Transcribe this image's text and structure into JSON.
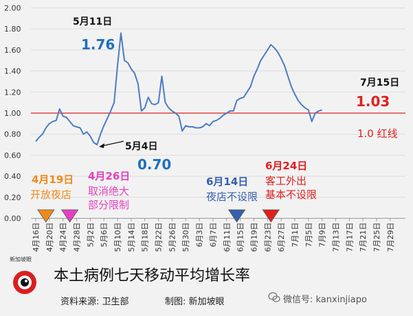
{
  "chart_data": {
    "type": "line",
    "title": "本土病例七天移动平均增长率",
    "ylim": [
      0,
      2.0
    ],
    "yticks": [
      "0.00",
      "0.20",
      "0.40",
      "0.60",
      "0.80",
      "1.00",
      "1.20",
      "1.40",
      "1.60",
      "1.80",
      "2.00"
    ],
    "xticks": [
      "4月16日",
      "4月20日",
      "4月24日",
      "4月28日",
      "5月2日",
      "5月6日",
      "5月10日",
      "5月14日",
      "5月18日",
      "5月22日",
      "5月26日",
      "5月30日",
      "6月3日",
      "6月7日",
      "6月11日",
      "6月15日",
      "6月19日",
      "6月23日",
      "6月27日",
      "7月1日",
      "7月5日",
      "7月9日",
      "7月13日",
      "7月17日",
      "7月21日",
      "7月25日",
      "7月29日"
    ],
    "x_start": "4月16日",
    "line_color": "#4a7cc4",
    "series": [
      {
        "values": [
          0.73,
          0.77,
          0.8,
          0.86,
          0.9,
          0.92,
          0.93,
          1.04,
          0.97,
          0.96,
          0.92,
          0.88,
          0.87,
          0.86,
          0.8,
          0.82,
          0.78,
          0.72,
          0.7,
          0.8,
          0.88,
          0.95,
          1.02,
          1.1,
          1.45,
          1.76,
          1.5,
          1.48,
          1.42,
          1.38,
          1.28,
          1.02,
          1.05,
          1.15,
          1.09,
          1.08,
          1.1,
          1.35,
          1.1,
          1.05,
          1.02,
          1.0,
          0.97,
          0.83,
          0.88,
          0.87,
          0.87,
          0.86,
          0.86,
          0.87,
          0.9,
          0.88,
          0.92,
          0.93,
          0.95,
          0.98,
          1.0,
          1.02,
          1.02,
          1.12,
          1.14,
          1.15,
          1.2,
          1.25,
          1.35,
          1.42,
          1.5,
          1.55,
          1.6,
          1.65,
          1.62,
          1.58,
          1.52,
          1.45,
          1.35,
          1.25,
          1.18,
          1.12,
          1.08,
          1.05,
          1.03,
          0.92,
          1.0,
          1.02,
          1.03
        ]
      }
    ],
    "red_line": {
      "value": 1.0,
      "label": "1.0 红线",
      "color": "#e02020"
    },
    "annotations": [
      {
        "date": "5月11日",
        "value": "1.76",
        "color": "#1e6fc0"
      },
      {
        "date": "5月4日",
        "value": "0.70",
        "color": "#1e6fc0"
      },
      {
        "date": "7月15日",
        "value": "1.03",
        "color": "#e02020"
      }
    ],
    "events": [
      {
        "date": "4月19日",
        "lines": [
          "开放夜店"
        ],
        "color": "#f08a1c",
        "day": 3
      },
      {
        "date": "4月26日",
        "lines": [
          "取消绝大",
          "部分限制"
        ],
        "color": "#e540c0",
        "day": 10
      },
      {
        "date": "6月14日",
        "lines": [
          "夜店不设限"
        ],
        "color": "#3560b0",
        "day": 59
      },
      {
        "date": "6月24日",
        "lines": [
          "客工外出",
          "基本不设限"
        ],
        "color": "#e02020",
        "day": 69
      }
    ]
  },
  "footer": {
    "title": "本土病例七天移动平均增长率",
    "source": "资料来源:  卫生部",
    "maker": "制图:  新加坡眼",
    "logo_text": "新加坡眼",
    "wechat": "微信号: kanxinjiapo"
  }
}
